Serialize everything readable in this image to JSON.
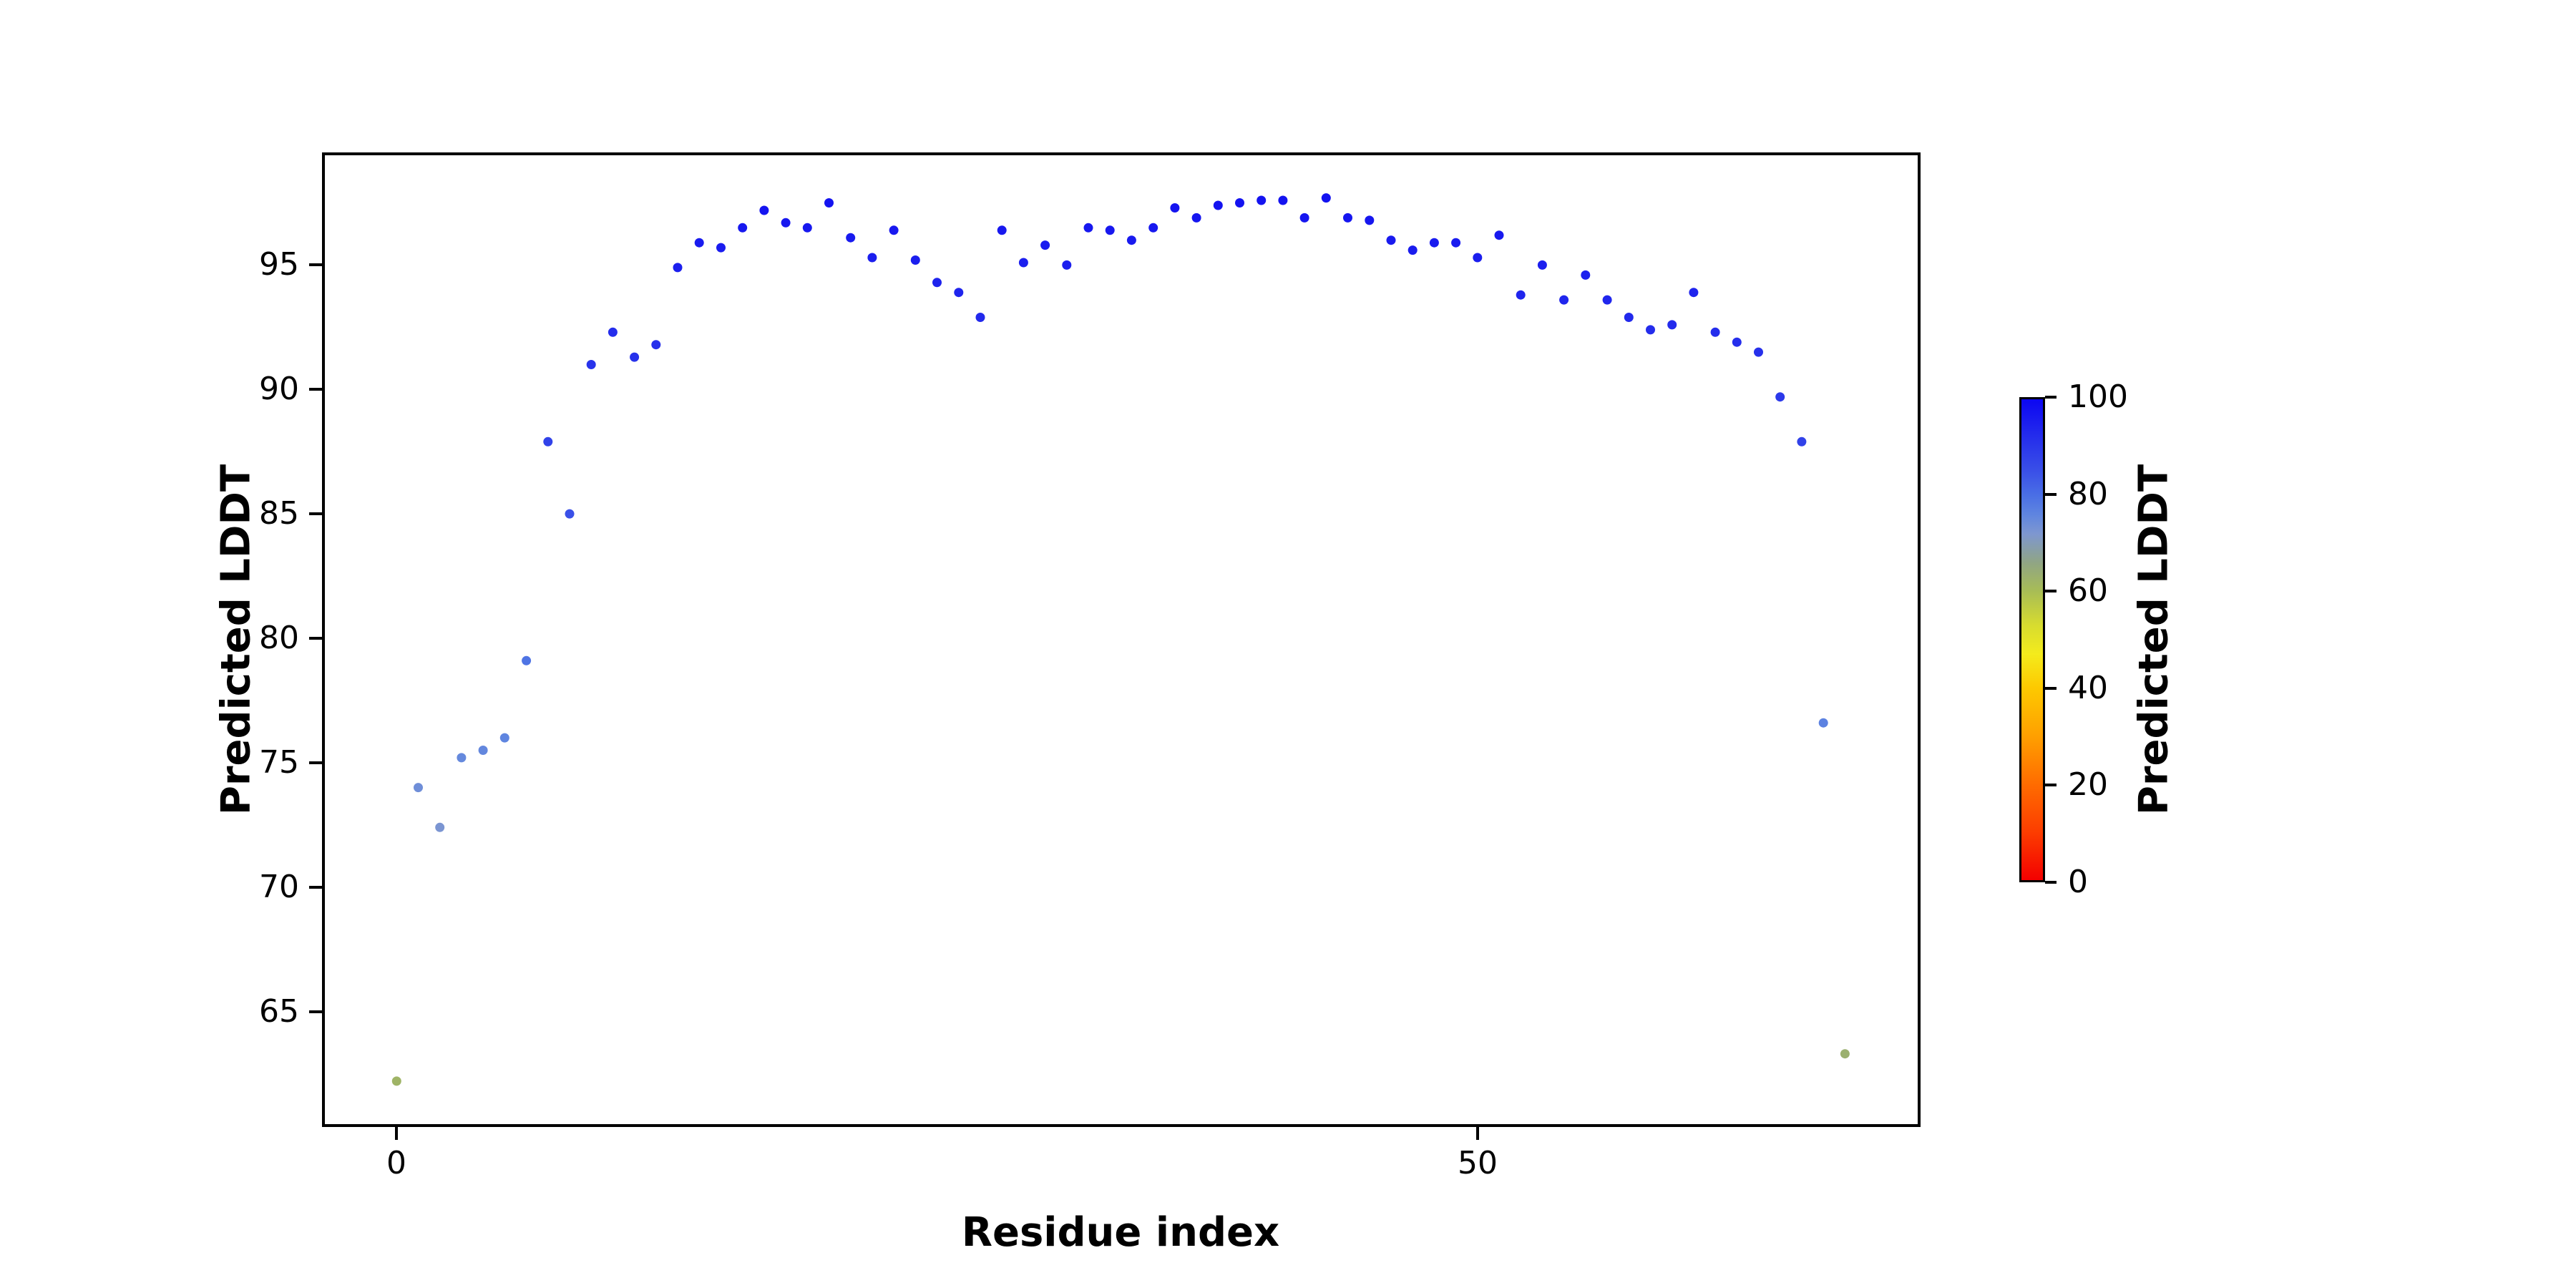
{
  "labels": {
    "x_axis": "Residue index",
    "y_axis": "Predicted LDDT",
    "colorbar": "Predicted LDDT"
  },
  "axes": {
    "xticks": [
      0,
      50
    ],
    "yticks": [
      95,
      90,
      85,
      80,
      75,
      70,
      65
    ],
    "colorbar_ticks": [
      100,
      80,
      60,
      40,
      20,
      0
    ]
  },
  "chart_data": {
    "type": "scatter",
    "title": "",
    "xlabel": "Residue index",
    "ylabel": "Predicted LDDT",
    "xlim": [
      -3.4,
      70.5
    ],
    "ylim": [
      60.4,
      99.5
    ],
    "xticks": [
      0,
      50
    ],
    "yticks": [
      65,
      70,
      75,
      80,
      85,
      90,
      95
    ],
    "grid": false,
    "x": [
      0,
      1,
      2,
      3,
      4,
      5,
      6,
      7,
      8,
      9,
      10,
      11,
      12,
      13,
      14,
      15,
      16,
      17,
      18,
      19,
      20,
      21,
      22,
      23,
      24,
      25,
      26,
      27,
      28,
      29,
      30,
      31,
      32,
      33,
      34,
      35,
      36,
      37,
      38,
      39,
      40,
      41,
      42,
      43,
      44,
      45,
      46,
      47,
      48,
      49,
      50,
      51,
      52,
      53,
      54,
      55,
      56,
      57,
      58,
      59,
      60,
      61,
      62,
      63,
      64,
      65,
      66,
      67
    ],
    "y": [
      62.2,
      74.0,
      72.4,
      75.2,
      75.5,
      76.0,
      79.1,
      87.9,
      85.0,
      91.0,
      92.3,
      91.3,
      91.8,
      94.9,
      95.9,
      95.7,
      96.5,
      97.2,
      96.7,
      96.5,
      97.5,
      96.1,
      95.3,
      96.4,
      95.2,
      94.3,
      93.9,
      92.9,
      96.4,
      95.1,
      95.8,
      95.0,
      96.5,
      96.4,
      96.0,
      96.5,
      97.3,
      96.9,
      97.4,
      97.5,
      97.6,
      97.6,
      96.9,
      97.7,
      96.9,
      96.8,
      96.0,
      95.6,
      95.9,
      95.9,
      95.3,
      96.2,
      93.8,
      95.0,
      93.6,
      94.6,
      93.6,
      92.9,
      92.4,
      92.6,
      93.9,
      92.3,
      91.9,
      91.5,
      89.7,
      87.9,
      76.6,
      63.3
    ],
    "marker_size_px": 13,
    "colorbar": {
      "label": "Predicted LDDT",
      "range": [
        0,
        100
      ],
      "ticks": [
        0,
        20,
        40,
        60,
        80,
        100
      ]
    },
    "colormap_stops": [
      [
        0.0,
        "#f30000"
      ],
      [
        0.1,
        "#fc3d00"
      ],
      [
        0.2,
        "#ff6c00"
      ],
      [
        0.3,
        "#ffa000"
      ],
      [
        0.4,
        "#fdc900"
      ],
      [
        0.47,
        "#f4eb1c"
      ],
      [
        0.53,
        "#d7dc2f"
      ],
      [
        0.6,
        "#a8bd55"
      ],
      [
        0.66,
        "#90a584"
      ],
      [
        0.72,
        "#7e97d0"
      ],
      [
        0.76,
        "#5f85e0"
      ],
      [
        0.8,
        "#4a6fe5"
      ],
      [
        0.85,
        "#3a50e8"
      ],
      [
        0.9,
        "#2b38ea"
      ],
      [
        0.95,
        "#1c1fee"
      ],
      [
        1.0,
        "#0c07f2"
      ]
    ],
    "colors": {
      "background": "#ffffff",
      "spine": "#000000"
    }
  }
}
